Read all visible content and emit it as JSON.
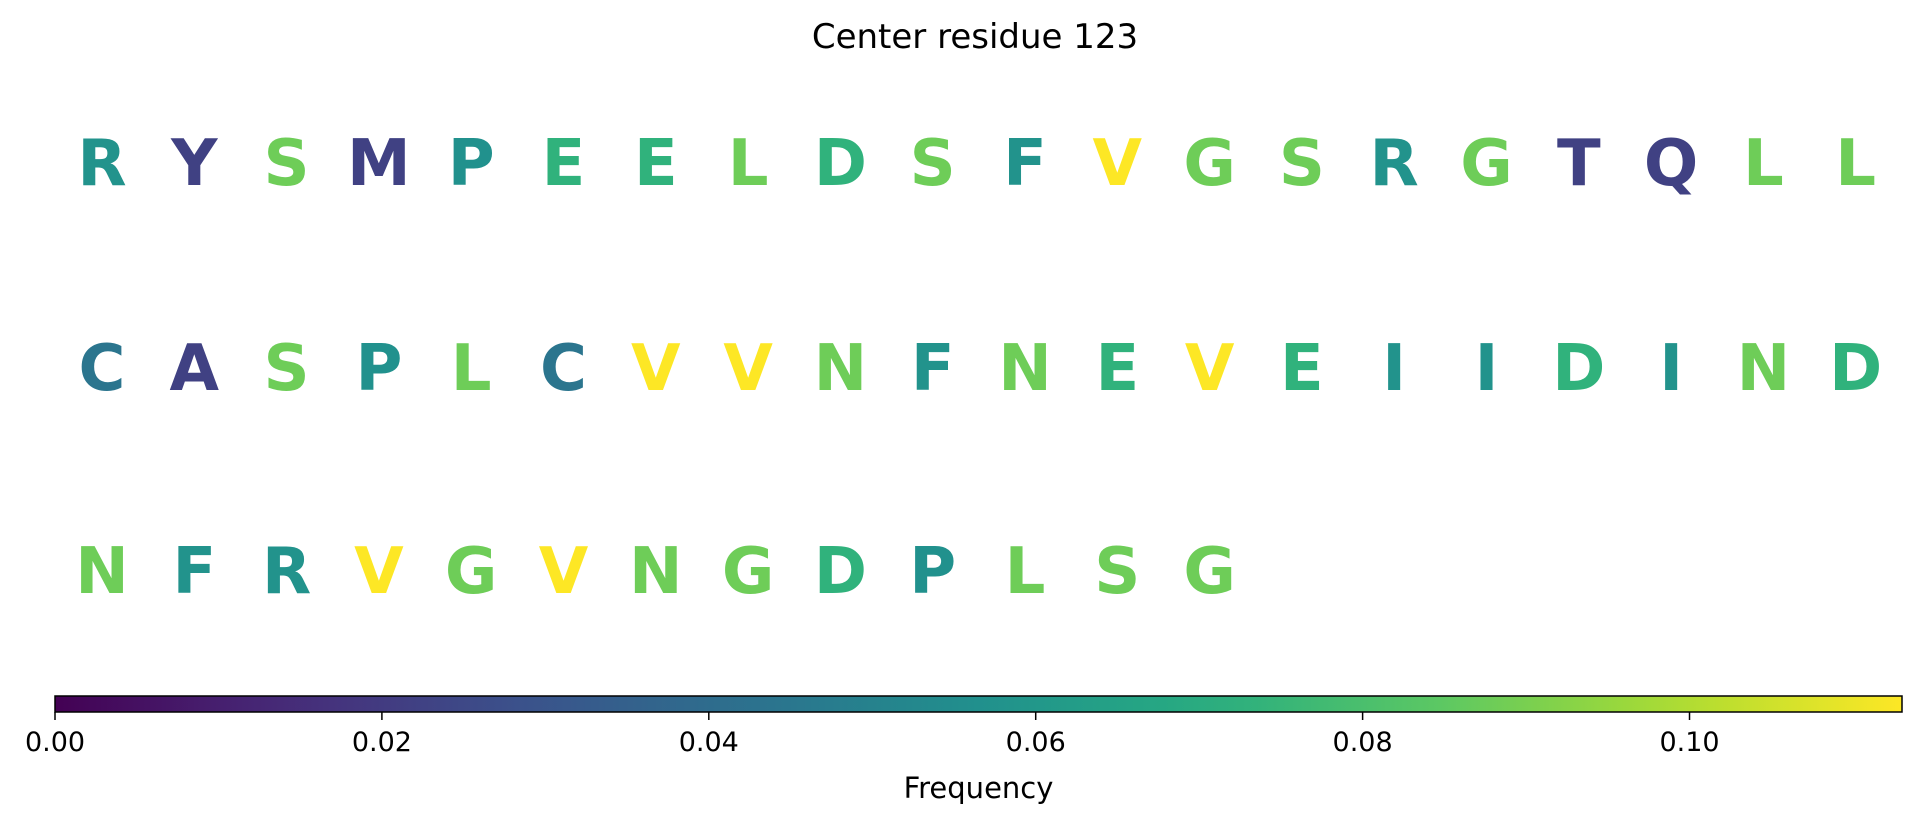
{
  "chart_data": {
    "type": "table",
    "title": "Center residue 123",
    "grid": false,
    "sequence": [
      {
        "residue": "R",
        "frequency": 0.058
      },
      {
        "residue": "Y",
        "frequency": 0.022
      },
      {
        "residue": "S",
        "frequency": 0.088
      },
      {
        "residue": "M",
        "frequency": 0.022
      },
      {
        "residue": "P",
        "frequency": 0.057
      },
      {
        "residue": "E",
        "frequency": 0.073
      },
      {
        "residue": "E",
        "frequency": 0.073
      },
      {
        "residue": "L",
        "frequency": 0.088
      },
      {
        "residue": "D",
        "frequency": 0.073
      },
      {
        "residue": "S",
        "frequency": 0.088
      },
      {
        "residue": "F",
        "frequency": 0.058
      },
      {
        "residue": "V",
        "frequency": 0.113
      },
      {
        "residue": "G",
        "frequency": 0.088
      },
      {
        "residue": "S",
        "frequency": 0.088
      },
      {
        "residue": "R",
        "frequency": 0.058
      },
      {
        "residue": "G",
        "frequency": 0.088
      },
      {
        "residue": "T",
        "frequency": 0.022
      },
      {
        "residue": "Q",
        "frequency": 0.022
      },
      {
        "residue": "L",
        "frequency": 0.088
      },
      {
        "residue": "L",
        "frequency": 0.088
      },
      {
        "residue": "C",
        "frequency": 0.044
      },
      {
        "residue": "A",
        "frequency": 0.022
      },
      {
        "residue": "S",
        "frequency": 0.088
      },
      {
        "residue": "P",
        "frequency": 0.057
      },
      {
        "residue": "L",
        "frequency": 0.088
      },
      {
        "residue": "C",
        "frequency": 0.044
      },
      {
        "residue": "V",
        "frequency": 0.113
      },
      {
        "residue": "V",
        "frequency": 0.113
      },
      {
        "residue": "N",
        "frequency": 0.088
      },
      {
        "residue": "F",
        "frequency": 0.058
      },
      {
        "residue": "N",
        "frequency": 0.088
      },
      {
        "residue": "E",
        "frequency": 0.073
      },
      {
        "residue": "V",
        "frequency": 0.113
      },
      {
        "residue": "E",
        "frequency": 0.073
      },
      {
        "residue": "I",
        "frequency": 0.058
      },
      {
        "residue": "I",
        "frequency": 0.058
      },
      {
        "residue": "D",
        "frequency": 0.073
      },
      {
        "residue": "I",
        "frequency": 0.058
      },
      {
        "residue": "N",
        "frequency": 0.088
      },
      {
        "residue": "D",
        "frequency": 0.073
      },
      {
        "residue": "N",
        "frequency": 0.088
      },
      {
        "residue": "F",
        "frequency": 0.058
      },
      {
        "residue": "R",
        "frequency": 0.058
      },
      {
        "residue": "V",
        "frequency": 0.113
      },
      {
        "residue": "G",
        "frequency": 0.088
      },
      {
        "residue": "V",
        "frequency": 0.113
      },
      {
        "residue": "N",
        "frequency": 0.088
      },
      {
        "residue": "G",
        "frequency": 0.088
      },
      {
        "residue": "D",
        "frequency": 0.073
      },
      {
        "residue": "P",
        "frequency": 0.057
      },
      {
        "residue": "L",
        "frequency": 0.088
      },
      {
        "residue": "S",
        "frequency": 0.088
      },
      {
        "residue": "G",
        "frequency": 0.088
      }
    ],
    "residues_per_row": 20,
    "colorbar": {
      "label": "Frequency",
      "colormap": "viridis",
      "range": [
        0.0,
        0.113
      ],
      "ticks": [
        0.0,
        0.02,
        0.04,
        0.06,
        0.08,
        0.1
      ],
      "tick_labels": [
        "0.00",
        "0.02",
        "0.04",
        "0.06",
        "0.08",
        "0.10"
      ],
      "placement": "bottom"
    }
  }
}
